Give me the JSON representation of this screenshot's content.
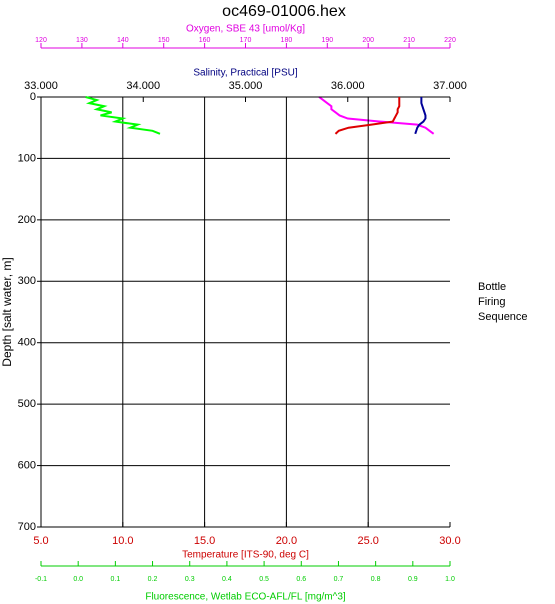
{
  "chart_data": {
    "type": "profile",
    "title": "oc469-01006.hex",
    "y_label": "Depth [salt water, m]",
    "ylim": [
      0,
      700
    ],
    "yticks": [
      0,
      100,
      200,
      300,
      400,
      500,
      600,
      700
    ],
    "y_inverted": true,
    "grid": true,
    "side_text": [
      "Bottle",
      "Firing",
      "Sequence"
    ],
    "x_axes": [
      {
        "label": "Oxygen, SBE 43 [umol/Kg]",
        "color": "#e000e0",
        "xlim": [
          120,
          220
        ],
        "xticks": [
          120,
          130,
          140,
          150,
          160,
          170,
          180,
          190,
          200,
          210,
          220
        ],
        "series": {
          "color": "#ff00ff",
          "depth": [
            0,
            5,
            10,
            15,
            20,
            25,
            30,
            35,
            40,
            45,
            50,
            55,
            60
          ],
          "values": [
            188,
            189,
            190,
            191,
            191,
            192,
            193,
            195,
            203,
            212,
            214,
            215,
            216
          ]
        }
      },
      {
        "label": "Salinity, Practical [PSU]",
        "color": "#000080",
        "xlim": [
          33,
          37
        ],
        "xticks": [
          {
            "value": 33,
            "label": "33.000"
          },
          {
            "value": 34,
            "label": "34.000"
          },
          {
            "value": 35,
            "label": "35.000"
          },
          {
            "value": 36,
            "label": "36.000"
          },
          {
            "value": 37,
            "label": "37.000"
          }
        ],
        "series": {
          "color": "#000099",
          "depth": [
            0,
            5,
            10,
            15,
            20,
            25,
            30,
            35,
            40,
            45,
            50,
            55,
            60
          ],
          "values": [
            36.72,
            36.72,
            36.72,
            36.73,
            36.74,
            36.75,
            36.76,
            36.76,
            36.74,
            36.7,
            36.68,
            36.67,
            36.66
          ]
        }
      },
      {
        "label": "Temperature [ITS-90, deg C]",
        "color": "#cc0000",
        "xlim": [
          5,
          30
        ],
        "xticks": [
          {
            "value": 5,
            "label": "5.0"
          },
          {
            "value": 10,
            "label": "10.0"
          },
          {
            "value": 15,
            "label": "15.0"
          },
          {
            "value": 20,
            "label": "20.0"
          },
          {
            "value": 25,
            "label": "25.0"
          },
          {
            "value": 30,
            "label": "30.0"
          }
        ],
        "series": {
          "color": "#dd0000",
          "depth": [
            0,
            5,
            10,
            15,
            20,
            25,
            30,
            35,
            40,
            45,
            50,
            55,
            60
          ],
          "values": [
            26.9,
            26.9,
            26.9,
            26.9,
            26.8,
            26.8,
            26.7,
            26.6,
            26.5,
            25.2,
            23.8,
            23.2,
            23.0
          ]
        }
      },
      {
        "label": "Fluorescence, Wetlab ECO-AFL/FL [mg/m^3]",
        "color": "#00cc00",
        "xlim": [
          -0.1,
          1.0
        ],
        "xticks": [
          -0.1,
          {
            "value": 0,
            "label": "0.0"
          },
          0.1,
          0.2,
          0.3,
          0.4,
          0.5,
          0.6,
          0.7,
          0.8,
          0.9,
          {
            "value": 1,
            "label": "1.0"
          }
        ],
        "series": {
          "color": "#00ff00",
          "depth": [
            0,
            5,
            10,
            15,
            20,
            25,
            30,
            35,
            40,
            45,
            50,
            55,
            60
          ],
          "values": [
            0.02,
            0.05,
            0.03,
            0.07,
            0.05,
            0.09,
            0.06,
            0.12,
            0.1,
            0.16,
            0.14,
            0.2,
            0.22
          ]
        }
      }
    ]
  }
}
